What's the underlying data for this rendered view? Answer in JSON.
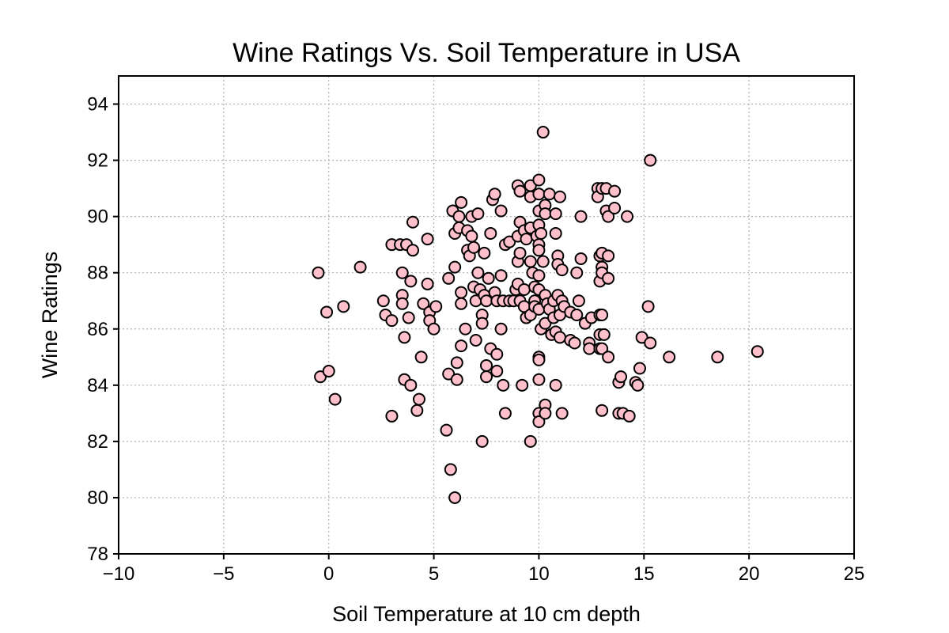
{
  "chart_data": {
    "type": "scatter",
    "title": "Wine Ratings Vs. Soil Temperature in USA",
    "xlabel": "Soil Temperature at 10 cm depth",
    "ylabel": "Wine Ratings",
    "xlim": [
      -10,
      25
    ],
    "ylim": [
      78,
      95
    ],
    "xticks": [
      -10,
      -5,
      0,
      5,
      10,
      15,
      20,
      25
    ],
    "xtick_labels": [
      "−10",
      "−5",
      "0",
      "5",
      "10",
      "15",
      "20",
      "25"
    ],
    "yticks": [
      78,
      80,
      82,
      84,
      86,
      88,
      90,
      92,
      94
    ],
    "ytick_labels": [
      "78",
      "80",
      "82",
      "84",
      "86",
      "88",
      "90",
      "92",
      "94"
    ],
    "grid": true,
    "marker_color": "#ffc0cb",
    "edge_color": "#000000",
    "points": [
      [
        -0.5,
        88.0
      ],
      [
        -0.4,
        84.3
      ],
      [
        0.0,
        84.5
      ],
      [
        -0.1,
        86.6
      ],
      [
        0.3,
        83.5
      ],
      [
        0.7,
        86.8
      ],
      [
        1.5,
        88.2
      ],
      [
        2.6,
        87.0
      ],
      [
        2.7,
        86.5
      ],
      [
        3.0,
        89.0
      ],
      [
        3.0,
        86.3
      ],
      [
        3.0,
        82.9
      ],
      [
        3.4,
        89.0
      ],
      [
        3.5,
        88.0
      ],
      [
        3.5,
        87.2
      ],
      [
        3.5,
        86.9
      ],
      [
        3.6,
        85.7
      ],
      [
        3.6,
        84.2
      ],
      [
        3.7,
        89.0
      ],
      [
        3.8,
        86.4
      ],
      [
        3.9,
        87.7
      ],
      [
        3.9,
        84.0
      ],
      [
        4.0,
        89.8
      ],
      [
        4.0,
        88.8
      ],
      [
        4.2,
        83.1
      ],
      [
        4.3,
        83.5
      ],
      [
        4.4,
        85.0
      ],
      [
        4.5,
        86.9
      ],
      [
        4.7,
        89.2
      ],
      [
        4.7,
        87.6
      ],
      [
        4.8,
        86.6
      ],
      [
        4.8,
        86.3
      ],
      [
        5.0,
        86.0
      ],
      [
        5.1,
        86.8
      ],
      [
        5.7,
        87.8
      ],
      [
        5.7,
        84.4
      ],
      [
        5.6,
        82.4
      ],
      [
        5.8,
        81.0
      ],
      [
        5.9,
        90.2
      ],
      [
        6.0,
        89.4
      ],
      [
        6.0,
        88.2
      ],
      [
        6.1,
        84.8
      ],
      [
        6.1,
        84.2
      ],
      [
        6.0,
        80.0
      ],
      [
        6.2,
        90.0
      ],
      [
        6.2,
        89.6
      ],
      [
        6.3,
        90.5
      ],
      [
        6.3,
        87.3
      ],
      [
        6.3,
        86.9
      ],
      [
        6.3,
        85.4
      ],
      [
        6.5,
        86.0
      ],
      [
        6.6,
        89.5
      ],
      [
        6.6,
        88.8
      ],
      [
        6.7,
        88.6
      ],
      [
        6.8,
        90.0
      ],
      [
        6.8,
        89.3
      ],
      [
        6.9,
        88.9
      ],
      [
        6.9,
        87.5
      ],
      [
        7.0,
        87.0
      ],
      [
        7.0,
        85.6
      ],
      [
        7.1,
        90.1
      ],
      [
        7.1,
        88.0
      ],
      [
        7.2,
        87.4
      ],
      [
        7.3,
        86.5
      ],
      [
        7.3,
        86.2
      ],
      [
        7.4,
        88.7
      ],
      [
        7.4,
        87.2
      ],
      [
        7.5,
        87.0
      ],
      [
        7.5,
        84.7
      ],
      [
        7.5,
        84.3
      ],
      [
        7.3,
        82.0
      ],
      [
        7.6,
        87.8
      ],
      [
        7.7,
        85.3
      ],
      [
        7.7,
        89.4
      ],
      [
        7.8,
        90.6
      ],
      [
        7.9,
        90.8
      ],
      [
        7.9,
        87.3
      ],
      [
        8.0,
        87.0
      ],
      [
        8.0,
        85.1
      ],
      [
        8.0,
        84.5
      ],
      [
        8.2,
        90.2
      ],
      [
        8.2,
        87.9
      ],
      [
        8.3,
        87.0
      ],
      [
        8.2,
        86.0
      ],
      [
        8.3,
        84.0
      ],
      [
        8.4,
        83.0
      ],
      [
        8.4,
        89.0
      ],
      [
        8.6,
        89.1
      ],
      [
        8.6,
        87.0
      ],
      [
        8.8,
        87.0
      ],
      [
        8.9,
        87.4
      ],
      [
        9.0,
        91.1
      ],
      [
        9.0,
        89.3
      ],
      [
        9.0,
        88.4
      ],
      [
        9.0,
        87.6
      ],
      [
        9.1,
        90.9
      ],
      [
        9.1,
        89.8
      ],
      [
        9.1,
        88.7
      ],
      [
        9.1,
        87.0
      ],
      [
        9.2,
        84.0
      ],
      [
        9.3,
        89.5
      ],
      [
        9.3,
        87.4
      ],
      [
        9.3,
        86.8
      ],
      [
        9.4,
        89.2
      ],
      [
        9.4,
        86.4
      ],
      [
        9.6,
        91.1
      ],
      [
        9.6,
        90.7
      ],
      [
        9.6,
        89.6
      ],
      [
        9.6,
        88.4
      ],
      [
        9.6,
        86.5
      ],
      [
        9.6,
        82.0
      ],
      [
        9.7,
        88.0
      ],
      [
        9.8,
        87.5
      ],
      [
        9.8,
        87.0
      ],
      [
        9.8,
        86.8
      ],
      [
        9.9,
        89.3
      ],
      [
        10.0,
        91.3
      ],
      [
        10.0,
        90.8
      ],
      [
        10.0,
        90.2
      ],
      [
        10.0,
        89.7
      ],
      [
        10.0,
        89.0
      ],
      [
        10.0,
        88.8
      ],
      [
        10.0,
        87.9
      ],
      [
        10.0,
        87.4
      ],
      [
        10.0,
        86.7
      ],
      [
        10.0,
        85.0
      ],
      [
        10.0,
        84.9
      ],
      [
        10.0,
        84.2
      ],
      [
        10.0,
        83.0
      ],
      [
        10.0,
        82.7
      ],
      [
        10.1,
        89.4
      ],
      [
        10.2,
        88.4
      ],
      [
        10.1,
        86.0
      ],
      [
        10.2,
        93.0
      ],
      [
        10.3,
        90.4
      ],
      [
        10.3,
        90.1
      ],
      [
        10.3,
        87.2
      ],
      [
        10.3,
        86.2
      ],
      [
        10.3,
        83.3
      ],
      [
        10.3,
        83.0
      ],
      [
        10.4,
        86.9
      ],
      [
        10.5,
        90.8
      ],
      [
        10.5,
        86.7
      ],
      [
        10.6,
        85.8
      ],
      [
        10.7,
        87.0
      ],
      [
        10.7,
        86.4
      ],
      [
        10.8,
        90.1
      ],
      [
        10.8,
        89.4
      ],
      [
        10.8,
        85.9
      ],
      [
        10.8,
        84.0
      ],
      [
        10.9,
        88.6
      ],
      [
        10.9,
        88.3
      ],
      [
        10.9,
        87.2
      ],
      [
        11.0,
        90.7
      ],
      [
        11.0,
        86.5
      ],
      [
        11.0,
        85.7
      ],
      [
        11.1,
        88.1
      ],
      [
        11.1,
        87.0
      ],
      [
        11.1,
        83.0
      ],
      [
        11.2,
        86.8
      ],
      [
        11.5,
        86.6
      ],
      [
        11.5,
        85.6
      ],
      [
        11.7,
        85.5
      ],
      [
        11.8,
        88.0
      ],
      [
        11.8,
        86.5
      ],
      [
        11.9,
        87.0
      ],
      [
        12.0,
        90.0
      ],
      [
        12.0,
        88.5
      ],
      [
        12.2,
        86.2
      ],
      [
        12.4,
        85.5
      ],
      [
        12.4,
        85.3
      ],
      [
        12.5,
        86.4
      ],
      [
        12.8,
        91.0
      ],
      [
        12.8,
        90.7
      ],
      [
        12.9,
        88.6
      ],
      [
        12.9,
        87.7
      ],
      [
        12.9,
        86.5
      ],
      [
        12.9,
        85.8
      ],
      [
        12.9,
        85.3
      ],
      [
        13.0,
        91.0
      ],
      [
        13.0,
        88.7
      ],
      [
        13.0,
        88.2
      ],
      [
        13.0,
        88.0
      ],
      [
        13.0,
        86.5
      ],
      [
        13.1,
        85.8
      ],
      [
        13.0,
        85.3
      ],
      [
        13.0,
        83.1
      ],
      [
        13.2,
        91.0
      ],
      [
        13.2,
        90.2
      ],
      [
        13.3,
        90.0
      ],
      [
        13.3,
        88.6
      ],
      [
        13.3,
        87.8
      ],
      [
        13.3,
        85.0
      ],
      [
        13.6,
        90.9
      ],
      [
        13.6,
        90.3
      ],
      [
        13.8,
        84.1
      ],
      [
        13.8,
        83.0
      ],
      [
        13.9,
        84.3
      ],
      [
        14.0,
        83.0
      ],
      [
        14.2,
        90.0
      ],
      [
        14.3,
        82.9
      ],
      [
        14.6,
        84.1
      ],
      [
        14.7,
        84.0
      ],
      [
        14.8,
        84.6
      ],
      [
        14.9,
        85.7
      ],
      [
        15.2,
        86.8
      ],
      [
        15.3,
        85.5
      ],
      [
        15.3,
        92.0
      ],
      [
        16.2,
        85.0
      ],
      [
        18.5,
        85.0
      ],
      [
        20.4,
        85.2
      ]
    ]
  }
}
